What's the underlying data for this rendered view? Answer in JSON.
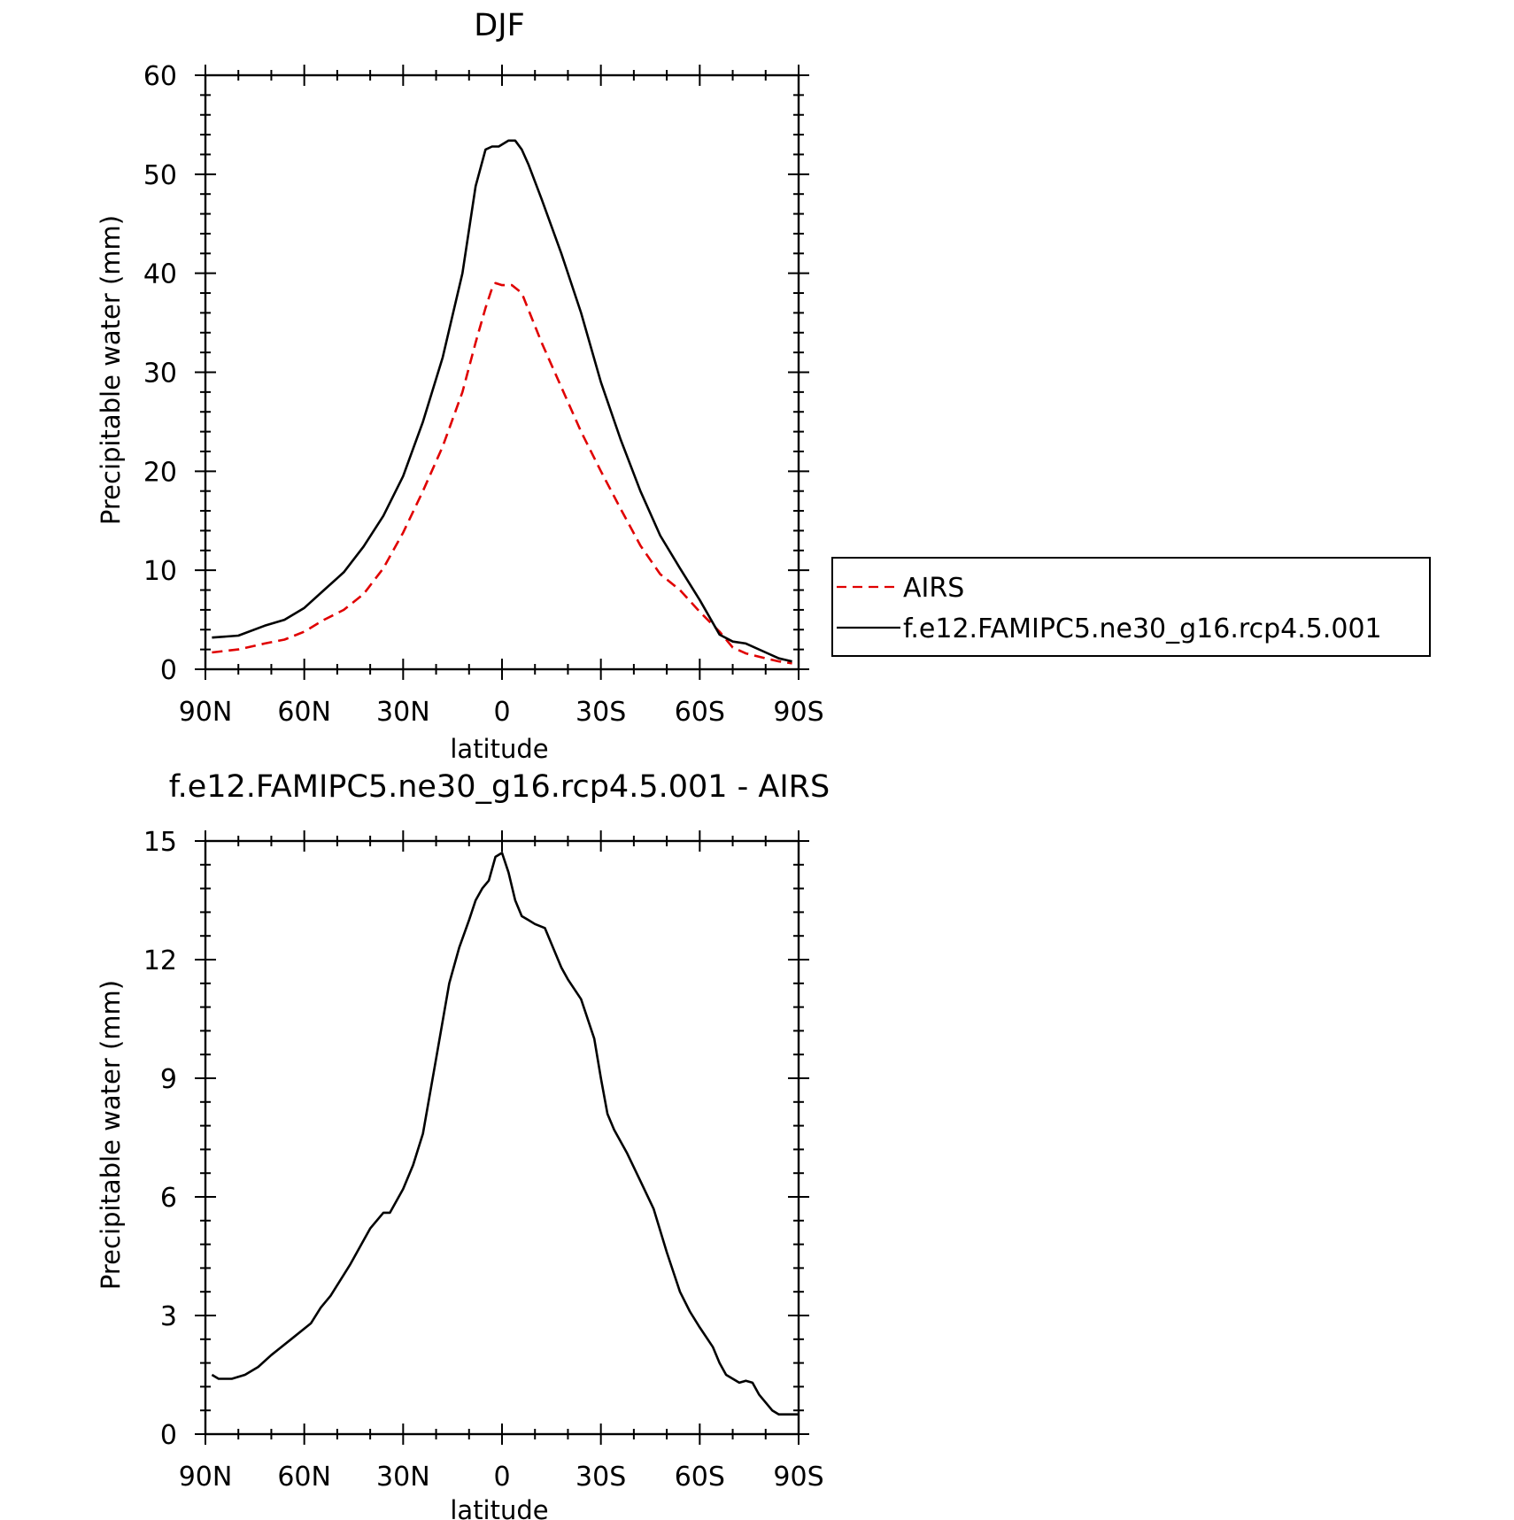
{
  "chart_data": [
    {
      "type": "line",
      "title": "DJF",
      "xlabel": "latitude",
      "ylabel": "Precipitable water (mm)",
      "xlim": [
        90,
        -90
      ],
      "ylim": [
        0,
        60
      ],
      "xticks": [
        {
          "value": 90,
          "label": "90N"
        },
        {
          "value": 60,
          "label": "60N"
        },
        {
          "value": 30,
          "label": "30N"
        },
        {
          "value": 0,
          "label": "0"
        },
        {
          "value": -30,
          "label": "30S"
        },
        {
          "value": -60,
          "label": "60S"
        },
        {
          "value": -90,
          "label": "90S"
        }
      ],
      "yticks": [
        {
          "value": 0,
          "label": "0"
        },
        {
          "value": 10,
          "label": "10"
        },
        {
          "value": 20,
          "label": "20"
        },
        {
          "value": 30,
          "label": "30"
        },
        {
          "value": 40,
          "label": "40"
        },
        {
          "value": 50,
          "label": "50"
        },
        {
          "value": 60,
          "label": "60"
        }
      ],
      "legend_position": "right",
      "series": [
        {
          "name": "AIRS",
          "color": "#e00000",
          "dash": "dashed",
          "x": [
            88,
            80,
            72,
            66,
            60,
            54,
            48,
            42,
            36,
            30,
            24,
            18,
            12,
            8,
            5,
            3,
            2,
            0,
            -3,
            -6,
            -9,
            -12,
            -18,
            -24,
            -30,
            -36,
            -42,
            -48,
            -54,
            -60,
            -66,
            -70,
            -74,
            -80,
            -84,
            -88
          ],
          "y": [
            1.7,
            2.0,
            2.6,
            3.0,
            3.8,
            5.0,
            6.0,
            7.6,
            10.2,
            13.8,
            18.0,
            22.5,
            28.0,
            33.0,
            36.5,
            38.5,
            39.0,
            38.8,
            38.8,
            38.0,
            35.5,
            33.0,
            28.5,
            24.0,
            20.0,
            16.2,
            12.5,
            9.6,
            8.0,
            5.8,
            3.8,
            2.2,
            1.6,
            1.1,
            0.8,
            0.6
          ]
        },
        {
          "name": "f.e12.FAMIPC5.ne30_g16.rcp4.5.001",
          "color": "#000000",
          "dash": "solid",
          "x": [
            88,
            80,
            72,
            66,
            60,
            54,
            48,
            42,
            36,
            30,
            24,
            18,
            12,
            8,
            5,
            3,
            1,
            -2,
            -4,
            -6,
            -8,
            -12,
            -18,
            -24,
            -30,
            -36,
            -42,
            -48,
            -54,
            -60,
            -66,
            -70,
            -74,
            -80,
            -84,
            -88
          ],
          "y": [
            3.2,
            3.4,
            4.4,
            5.0,
            6.2,
            8.0,
            9.8,
            12.4,
            15.5,
            19.5,
            25.0,
            31.5,
            40.0,
            48.8,
            52.5,
            52.8,
            52.8,
            53.4,
            53.4,
            52.5,
            51.0,
            47.5,
            42.0,
            36.0,
            29.0,
            23.2,
            18.0,
            13.5,
            10.2,
            7.0,
            3.5,
            2.8,
            2.6,
            1.7,
            1.1,
            0.8
          ]
        }
      ]
    },
    {
      "type": "line",
      "title": "f.e12.FAMIPC5.ne30_g16.rcp4.5.001 - AIRS",
      "xlabel": "latitude",
      "ylabel": "Precipitable water (mm)",
      "xlim": [
        90,
        -90
      ],
      "ylim": [
        0,
        15
      ],
      "xticks": [
        {
          "value": 90,
          "label": "90N"
        },
        {
          "value": 60,
          "label": "60N"
        },
        {
          "value": 30,
          "label": "30N"
        },
        {
          "value": 0,
          "label": "0"
        },
        {
          "value": -30,
          "label": "30S"
        },
        {
          "value": -60,
          "label": "60S"
        },
        {
          "value": -90,
          "label": "90S"
        }
      ],
      "yticks": [
        {
          "value": 0,
          "label": "0"
        },
        {
          "value": 3,
          "label": "3"
        },
        {
          "value": 6,
          "label": "6"
        },
        {
          "value": 9,
          "label": "9"
        },
        {
          "value": 12,
          "label": "12"
        },
        {
          "value": 15,
          "label": "15"
        }
      ],
      "series": [
        {
          "color": "#000000",
          "dash": "solid",
          "x": [
            88,
            86,
            82,
            78,
            74,
            70,
            64,
            58,
            55,
            52,
            46,
            40,
            36,
            34,
            30,
            27,
            24,
            20,
            16,
            13,
            10,
            8,
            6,
            4,
            2,
            0,
            -2,
            -4,
            -6,
            -8,
            -10,
            -13,
            -16,
            -18,
            -20,
            -24,
            -28,
            -30,
            -32,
            -34,
            -36,
            -38,
            -42,
            -46,
            -50,
            -54,
            -57,
            -60,
            -64,
            -66,
            -68,
            -72,
            -74,
            -76,
            -78,
            -80,
            -82,
            -84,
            -88,
            -90
          ],
          "y": [
            1.5,
            1.4,
            1.4,
            1.5,
            1.7,
            2.0,
            2.4,
            2.8,
            3.2,
            3.5,
            4.3,
            5.2,
            5.6,
            5.6,
            6.2,
            6.8,
            7.6,
            9.5,
            11.4,
            12.3,
            13.0,
            13.5,
            13.8,
            14.0,
            14.6,
            14.7,
            14.2,
            13.5,
            13.1,
            13.0,
            12.9,
            12.8,
            12.2,
            11.8,
            11.5,
            11.0,
            10.0,
            9.0,
            8.1,
            7.7,
            7.4,
            7.1,
            6.4,
            5.7,
            4.6,
            3.6,
            3.1,
            2.7,
            2.2,
            1.8,
            1.5,
            1.3,
            1.35,
            1.3,
            1.0,
            0.8,
            0.6,
            0.5,
            0.5,
            0.5
          ]
        }
      ]
    }
  ]
}
